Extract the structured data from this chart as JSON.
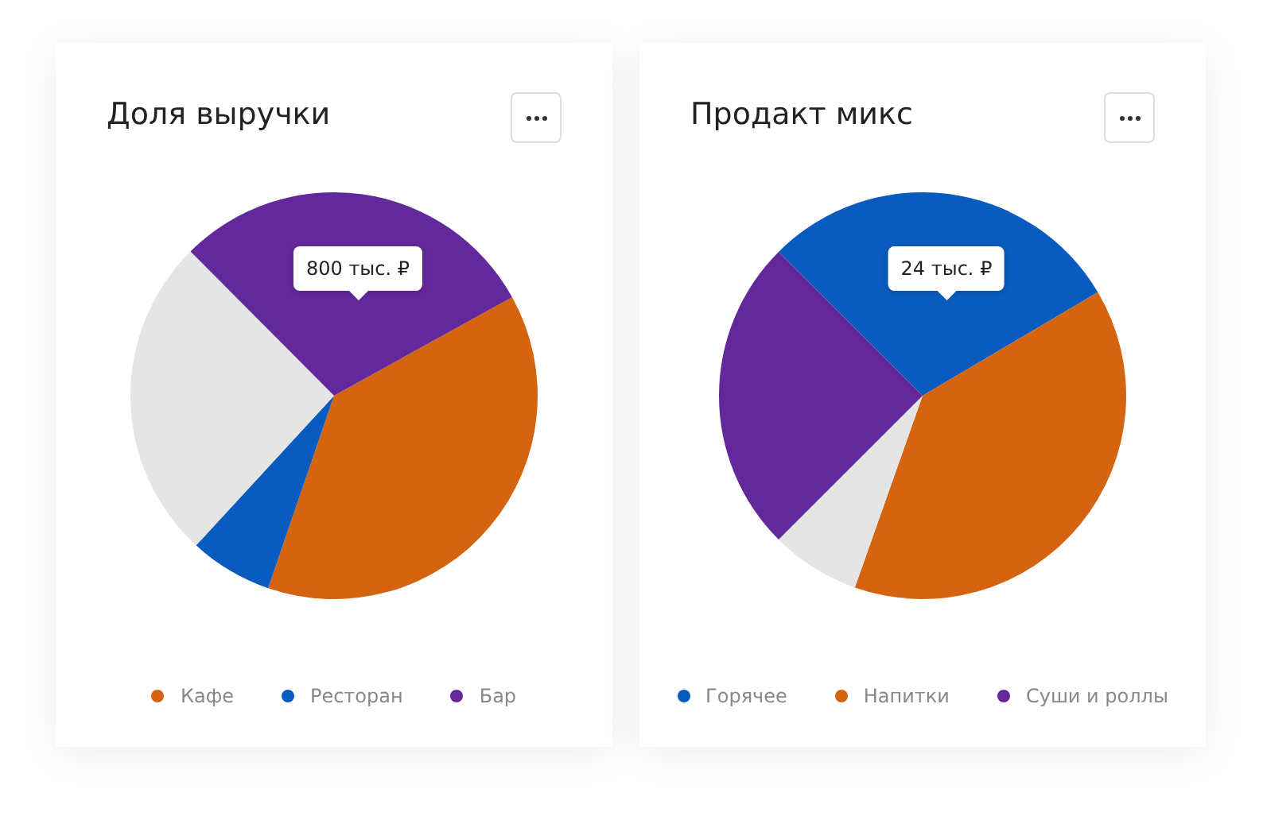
{
  "chart_data": [
    {
      "type": "pie",
      "title": "Доля выручки",
      "categories": [
        "Кафе",
        "Ресторан",
        null,
        "Бар"
      ],
      "values": [
        38.3,
        6.6,
        25.7,
        29.4
      ],
      "colors": [
        "#d4640f",
        "#0a5bbf",
        "#e5e5e5",
        "#63289a"
      ],
      "legend": "bottom",
      "annotations": [
        "800 тыс. ₽"
      ]
    },
    {
      "type": "pie",
      "title": "Продакт микс",
      "categories": [
        "Горячее",
        "Напитки",
        null,
        "Суши и роллы"
      ],
      "values": [
        29,
        38.9,
        7.1,
        25
      ],
      "colors": [
        "#0a5bbf",
        "#d4640f",
        "#e5e5e5",
        "#63289a"
      ],
      "legend": "bottom",
      "annotations": [
        "24 тыс. ₽"
      ]
    }
  ]
}
